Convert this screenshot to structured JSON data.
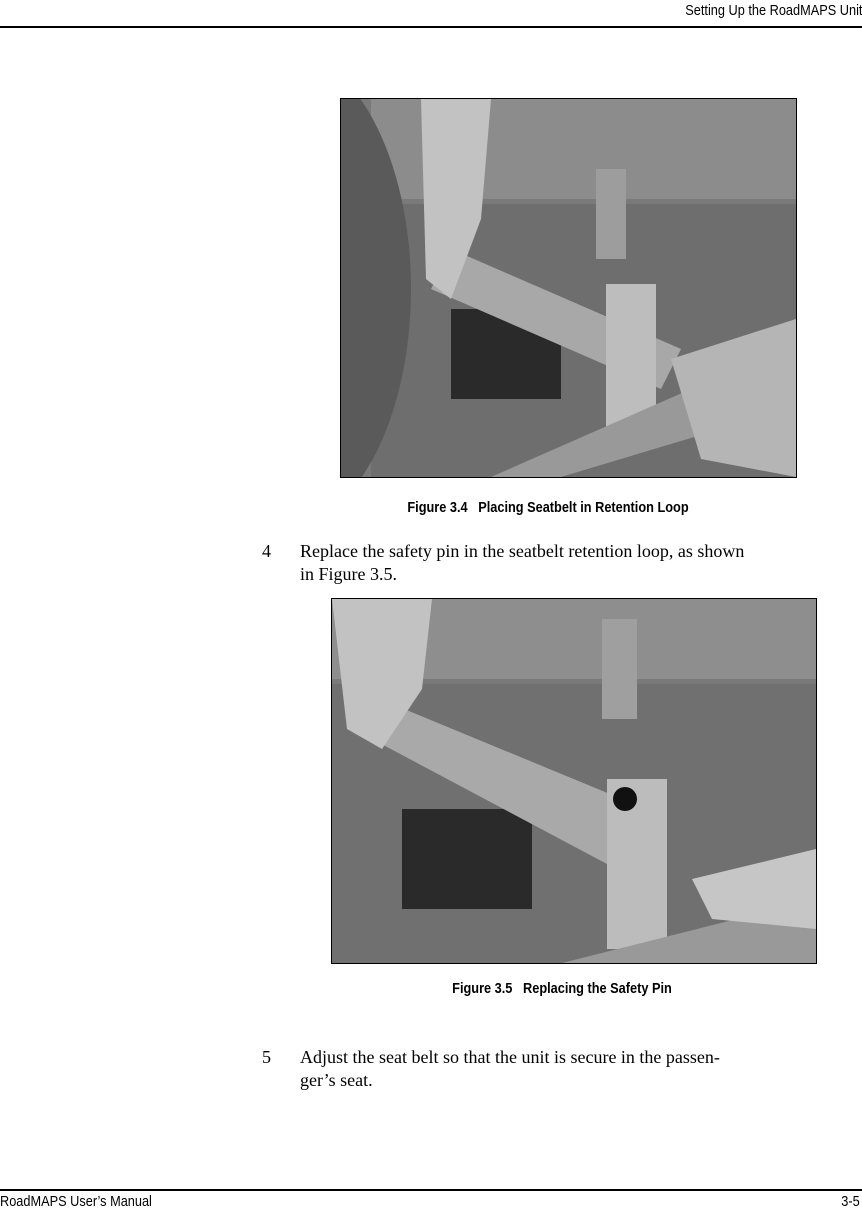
{
  "header": {
    "title": "Setting Up the RoadMAPS Unit"
  },
  "figures": [
    {
      "label": "Figure 3.4",
      "title": "Placing Seatbelt in Retention Loop"
    },
    {
      "label": "Figure 3.5",
      "title": "Replacing the Safety Pin"
    }
  ],
  "steps": [
    {
      "number": "4",
      "lines": [
        "Replace the safety pin in the seatbelt retention loop, as shown",
        "in Figure 3.5."
      ]
    },
    {
      "number": "5",
      "lines": [
        "Adjust the seat belt so that the unit is secure in the passen-",
        "ger’s seat."
      ]
    }
  ],
  "footer": {
    "left": "RoadMAPS User’s Manual",
    "right": "3-5"
  }
}
